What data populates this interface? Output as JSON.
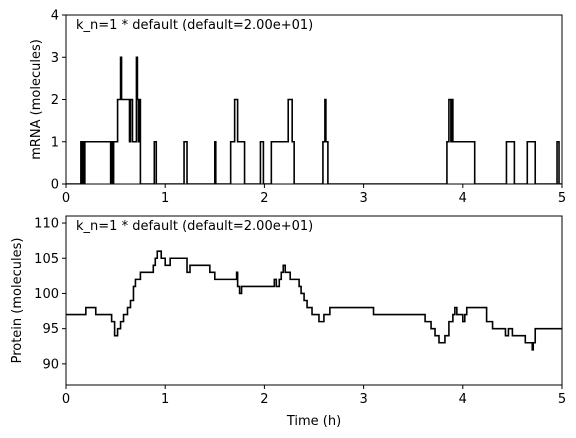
{
  "chart_data": [
    {
      "type": "line",
      "step": true,
      "annotation": "k_n=1 * default (default=2.00e+01)",
      "xlabel": "",
      "ylabel": "mRNA (molecules)",
      "xlim": [
        0,
        5
      ],
      "ylim": [
        0,
        4
      ],
      "xticks": [
        "0",
        "1",
        "2",
        "3",
        "4",
        "5"
      ],
      "yticks": [
        "0",
        "1",
        "2",
        "3",
        "4"
      ],
      "series": [
        {
          "color": "#000000",
          "x": [
            0,
            0.15,
            0.16,
            0.17,
            0.18,
            0.19,
            0.45,
            0.46,
            0.47,
            0.48,
            0.52,
            0.55,
            0.56,
            0.57,
            0.64,
            0.65,
            0.67,
            0.71,
            0.72,
            0.73,
            0.74,
            0.75,
            0.89,
            0.91,
            1.19,
            1.22,
            1.5,
            1.51,
            1.66,
            1.7,
            1.73,
            1.8,
            1.96,
            1.99,
            2.07,
            2.24,
            2.28,
            2.3,
            2.59,
            2.61,
            2.62,
            2.64,
            3.84,
            3.86,
            3.88,
            3.89,
            3.9,
            3.92,
            4.12,
            4.44,
            4.52,
            4.65,
            4.73,
            4.95,
            4.97,
            5.0
          ],
          "y": [
            0,
            1,
            0,
            1,
            0,
            1,
            0,
            1,
            0,
            1,
            2,
            3,
            2,
            2,
            1,
            2,
            1,
            3,
            2,
            1,
            2,
            0,
            1,
            0,
            1,
            0,
            1,
            0,
            1,
            2,
            1,
            0,
            1,
            0,
            1,
            2,
            1,
            0,
            1,
            2,
            1,
            0,
            1,
            2,
            1,
            2,
            1,
            1,
            0,
            1,
            0,
            1,
            0,
            1,
            0,
            0
          ]
        }
      ]
    },
    {
      "type": "line",
      "step": true,
      "annotation": "k_n=1 * default (default=2.00e+01)",
      "xlabel": "Time (h)",
      "ylabel": "Protein (molecules)",
      "xlim": [
        0,
        5
      ],
      "ylim": [
        87,
        111
      ],
      "xticks": [
        "0",
        "1",
        "2",
        "3",
        "4",
        "5"
      ],
      "yticks": [
        "90",
        "95",
        "100",
        "105",
        "110"
      ],
      "series": [
        {
          "color": "#000000",
          "x": [
            0,
            0.2,
            0.3,
            0.46,
            0.49,
            0.52,
            0.55,
            0.58,
            0.62,
            0.65,
            0.68,
            0.7,
            0.75,
            0.88,
            0.9,
            0.92,
            0.96,
            1.0,
            1.05,
            1.18,
            1.22,
            1.25,
            1.33,
            1.45,
            1.5,
            1.62,
            1.72,
            1.73,
            1.75,
            1.77,
            2.05,
            2.1,
            2.12,
            2.15,
            2.17,
            2.19,
            2.21,
            2.26,
            2.35,
            2.37,
            2.4,
            2.43,
            2.46,
            2.48,
            2.5,
            2.52,
            2.55,
            2.57,
            2.6,
            2.66,
            2.78,
            3.1,
            3.62,
            3.68,
            3.72,
            3.76,
            3.82,
            3.86,
            3.9,
            3.92,
            3.94,
            3.96,
            4.0,
            4.02,
            4.04,
            4.06,
            4.1,
            4.24,
            4.28,
            4.3,
            4.32,
            4.43,
            4.46,
            4.5,
            4.63,
            4.7,
            4.71,
            4.73,
            5.0
          ],
          "y": [
            97,
            98,
            97,
            96,
            94,
            95,
            96,
            97,
            98,
            99,
            101,
            102,
            103,
            104,
            105,
            106,
            105,
            104,
            105,
            105,
            103,
            104,
            104,
            103,
            102,
            102,
            103,
            101,
            100,
            101,
            101,
            102,
            101,
            102,
            103,
            104,
            103,
            102,
            101,
            100,
            99,
            98,
            98,
            97,
            97,
            97,
            96,
            96,
            97,
            98,
            98,
            97,
            96,
            95,
            94,
            93,
            94,
            96,
            97,
            98,
            97,
            97,
            96,
            97,
            98,
            98,
            98,
            96,
            96,
            95,
            95,
            94,
            95,
            94,
            93,
            92,
            93,
            95,
            95
          ]
        }
      ]
    }
  ]
}
